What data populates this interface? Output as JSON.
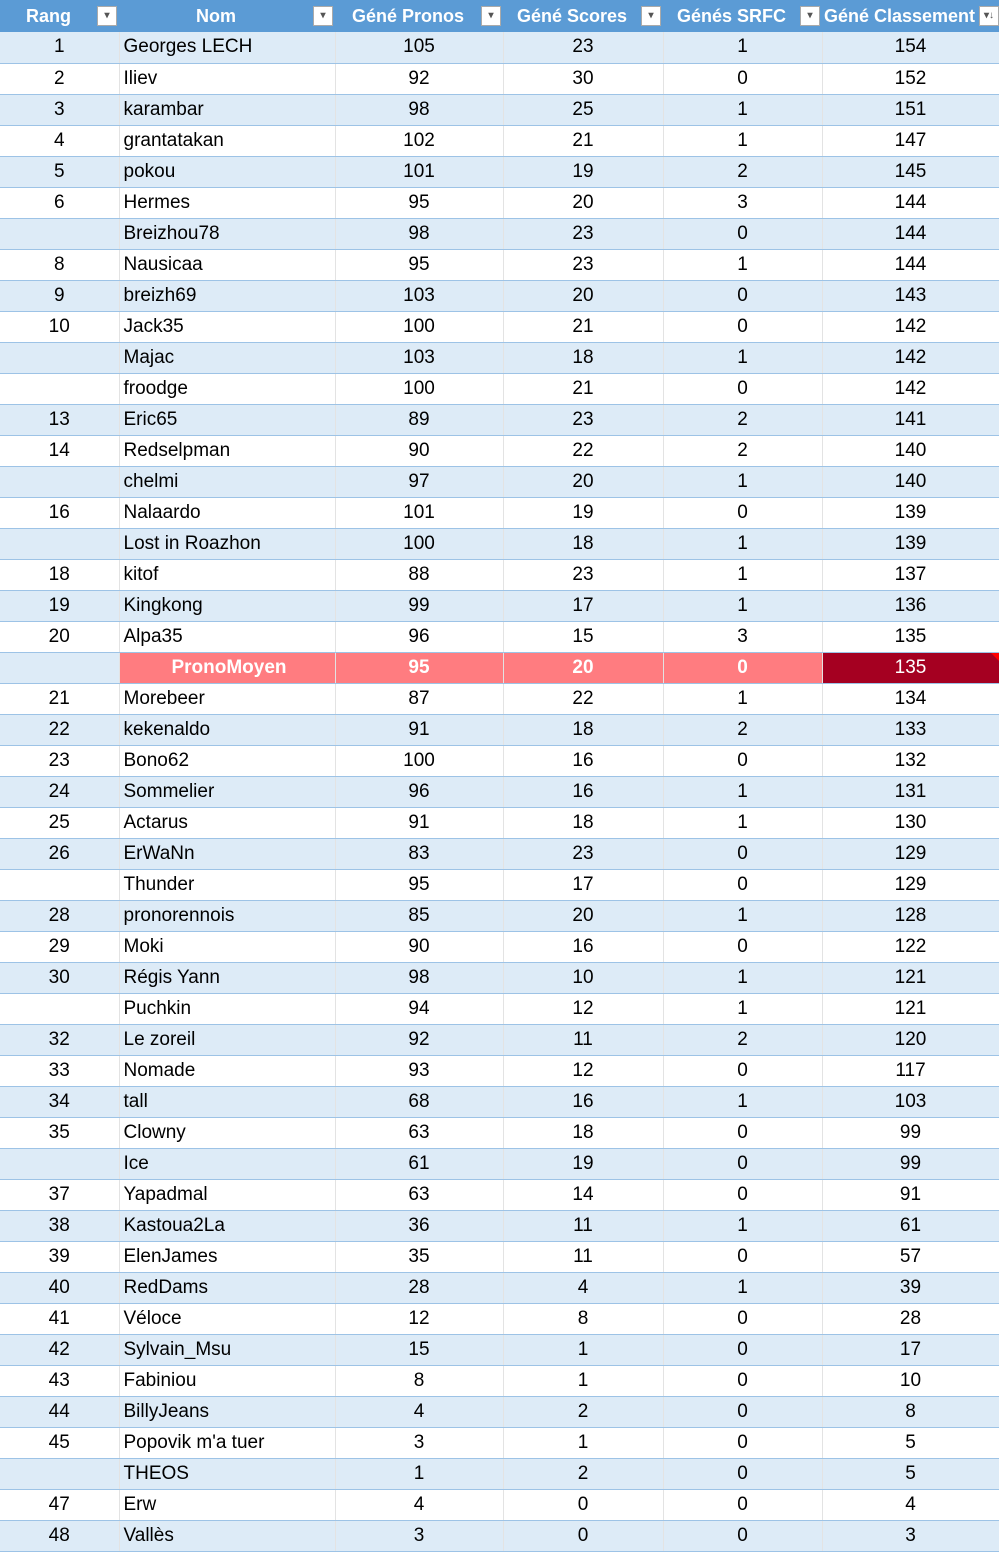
{
  "headers": [
    "Rang",
    "Nom",
    "Géné Pronos",
    "Géné Scores",
    "Génés SRFC",
    "Géné Classement"
  ],
  "colors": {
    "header": "#5b9bd5",
    "stripe": "#ddebf7",
    "average_row": "#ff7c80",
    "average_total": "#a50021"
  },
  "average_row_index": 20,
  "rows": [
    [
      "1",
      "Georges LECH",
      "105",
      "23",
      "1",
      "154"
    ],
    [
      "2",
      "Iliev",
      "92",
      "30",
      "0",
      "152"
    ],
    [
      "3",
      "karambar",
      "98",
      "25",
      "1",
      "151"
    ],
    [
      "4",
      "grantatakan",
      "102",
      "21",
      "1",
      "147"
    ],
    [
      "5",
      "pokou",
      "101",
      "19",
      "2",
      "145"
    ],
    [
      "6",
      "Hermes",
      "95",
      "20",
      "3",
      "144"
    ],
    [
      "",
      "Breizhou78",
      "98",
      "23",
      "0",
      "144"
    ],
    [
      "8",
      "Nausicaa",
      "95",
      "23",
      "1",
      "144"
    ],
    [
      "9",
      "breizh69",
      "103",
      "20",
      "0",
      "143"
    ],
    [
      "10",
      "Jack35",
      "100",
      "21",
      "0",
      "142"
    ],
    [
      "",
      "Majac",
      "103",
      "18",
      "1",
      "142"
    ],
    [
      "",
      "froodge",
      "100",
      "21",
      "0",
      "142"
    ],
    [
      "13",
      "Eric65",
      "89",
      "23",
      "2",
      "141"
    ],
    [
      "14",
      "Redselpman",
      "90",
      "22",
      "2",
      "140"
    ],
    [
      "",
      "chelmi",
      "97",
      "20",
      "1",
      "140"
    ],
    [
      "16",
      "Nalaardo",
      "101",
      "19",
      "0",
      "139"
    ],
    [
      "",
      "Lost in Roazhon",
      "100",
      "18",
      "1",
      "139"
    ],
    [
      "18",
      "kitof",
      "88",
      "23",
      "1",
      "137"
    ],
    [
      "19",
      "Kingkong",
      "99",
      "17",
      "1",
      "136"
    ],
    [
      "20",
      "Alpa35",
      "96",
      "15",
      "3",
      "135"
    ],
    [
      "",
      "PronoMoyen",
      "95",
      "20",
      "0",
      "135"
    ],
    [
      "21",
      "Morebeer",
      "87",
      "22",
      "1",
      "134"
    ],
    [
      "22",
      "kekenaldo",
      "91",
      "18",
      "2",
      "133"
    ],
    [
      "23",
      "Bono62",
      "100",
      "16",
      "0",
      "132"
    ],
    [
      "24",
      "Sommelier",
      "96",
      "16",
      "1",
      "131"
    ],
    [
      "25",
      "Actarus",
      "91",
      "18",
      "1",
      "130"
    ],
    [
      "26",
      "ErWaNn",
      "83",
      "23",
      "0",
      "129"
    ],
    [
      "",
      "Thunder",
      "95",
      "17",
      "0",
      "129"
    ],
    [
      "28",
      "pronorennois",
      "85",
      "20",
      "1",
      "128"
    ],
    [
      "29",
      "Moki",
      "90",
      "16",
      "0",
      "122"
    ],
    [
      "30",
      "Régis Yann",
      "98",
      "10",
      "1",
      "121"
    ],
    [
      "",
      "Puchkin",
      "94",
      "12",
      "1",
      "121"
    ],
    [
      "32",
      "Le zoreil",
      "92",
      "11",
      "2",
      "120"
    ],
    [
      "33",
      "Nomade",
      "93",
      "12",
      "0",
      "117"
    ],
    [
      "34",
      "tall",
      "68",
      "16",
      "1",
      "103"
    ],
    [
      "35",
      "Clowny",
      "63",
      "18",
      "0",
      "99"
    ],
    [
      "",
      "Ice",
      "61",
      "19",
      "0",
      "99"
    ],
    [
      "37",
      "Yapadmal",
      "63",
      "14",
      "0",
      "91"
    ],
    [
      "38",
      "Kastoua2La",
      "36",
      "11",
      "1",
      "61"
    ],
    [
      "39",
      "ElenJames",
      "35",
      "11",
      "0",
      "57"
    ],
    [
      "40",
      "RedDams",
      "28",
      "4",
      "1",
      "39"
    ],
    [
      "41",
      "Véloce",
      "12",
      "8",
      "0",
      "28"
    ],
    [
      "42",
      "Sylvain_Msu",
      "15",
      "1",
      "0",
      "17"
    ],
    [
      "43",
      "Fabiniou",
      "8",
      "1",
      "0",
      "10"
    ],
    [
      "44",
      "BillyJeans",
      "4",
      "2",
      "0",
      "8"
    ],
    [
      "45",
      "Popovik m'a tuer",
      "3",
      "1",
      "0",
      "5"
    ],
    [
      "",
      "THEOS",
      "1",
      "2",
      "0",
      "5"
    ],
    [
      "47",
      "Erw",
      "4",
      "0",
      "0",
      "4"
    ],
    [
      "48",
      "Vallès",
      "3",
      "0",
      "0",
      "3"
    ]
  ]
}
